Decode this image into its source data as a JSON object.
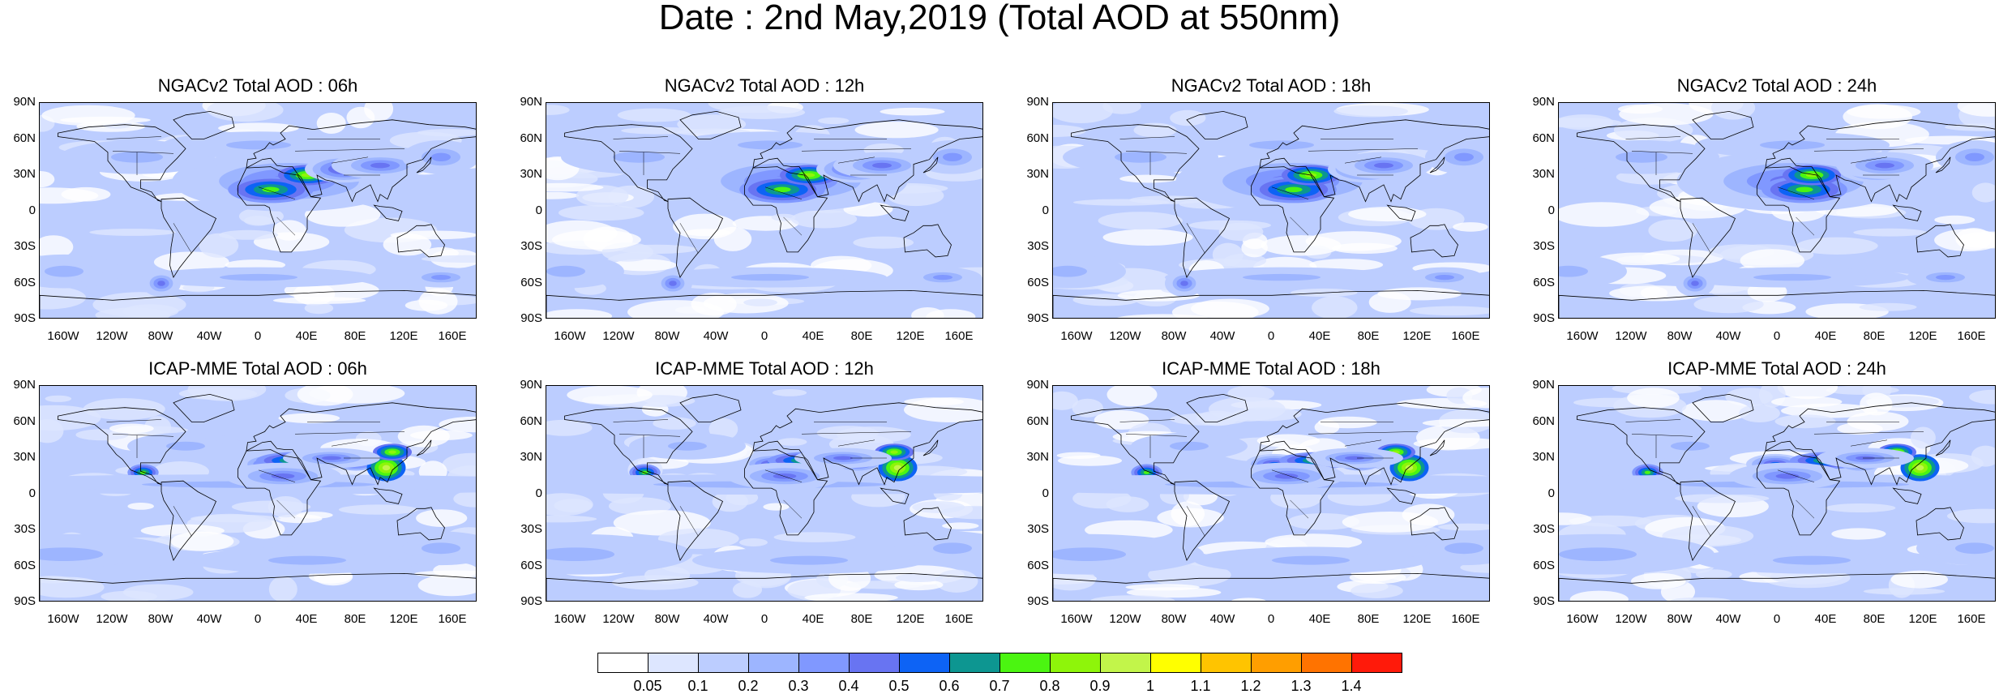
{
  "title": "Date : 2nd May,2019 (Total AOD at 550nm)",
  "lat_labels": [
    "90N",
    "60N",
    "30N",
    "0",
    "30S",
    "60S",
    "90S"
  ],
  "lon_labels": [
    "160W",
    "120W",
    "80W",
    "40W",
    "0",
    "40E",
    "80E",
    "120E",
    "160E"
  ],
  "panels": [
    {
      "title": "NGACv2 Total AOD : 06h",
      "model": "NGACv2",
      "hour": "06h"
    },
    {
      "title": "NGACv2 Total AOD : 12h",
      "model": "NGACv2",
      "hour": "12h"
    },
    {
      "title": "NGACv2 Total AOD : 18h",
      "model": "NGACv2",
      "hour": "18h"
    },
    {
      "title": "NGACv2 Total AOD : 24h",
      "model": "NGACv2",
      "hour": "24h"
    },
    {
      "title": "ICAP-MME Total AOD : 06h",
      "model": "ICAP-MME",
      "hour": "06h"
    },
    {
      "title": "ICAP-MME Total AOD : 12h",
      "model": "ICAP-MME",
      "hour": "12h"
    },
    {
      "title": "ICAP-MME Total AOD : 18h",
      "model": "ICAP-MME",
      "hour": "18h"
    },
    {
      "title": "ICAP-MME Total AOD : 24h",
      "model": "ICAP-MME",
      "hour": "24h"
    }
  ],
  "colorbar": {
    "labels": [
      "0.05",
      "0.1",
      "0.2",
      "0.3",
      "0.4",
      "0.5",
      "0.6",
      "0.7",
      "0.8",
      "0.9",
      "1",
      "1.1",
      "1.2",
      "1.3",
      "1.4"
    ],
    "colors": [
      "#ffffff",
      "#dde6ff",
      "#bccdff",
      "#9db5ff",
      "#8098ff",
      "#6874f2",
      "#0d63f5",
      "#0d9691",
      "#4bf511",
      "#8ef50a",
      "#c2f54a",
      "#ffff00",
      "#ffc400",
      "#ff9e00",
      "#ff7300",
      "#ff1a0a"
    ]
  }
}
